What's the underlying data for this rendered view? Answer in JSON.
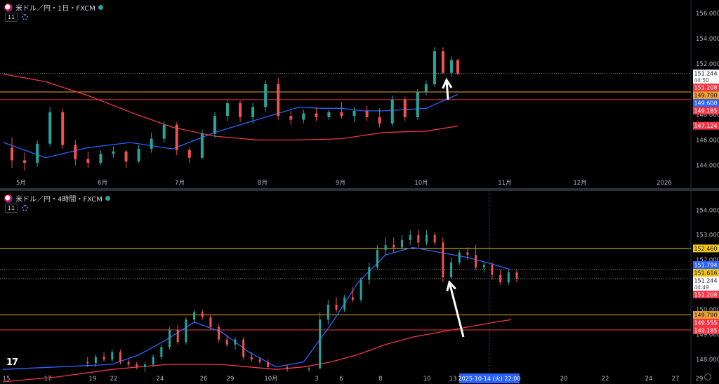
{
  "chart_data": [
    {
      "type": "candlestick",
      "title": "米ドル／円・1日・FXCM",
      "indicator_count": "11",
      "ylim": [
        143.2,
        156.6
      ],
      "y_ticks": [
        144.0,
        146.0,
        148.0,
        150.0,
        152.0,
        154.0,
        156.0
      ],
      "y_tick_labels": [
        "144.000",
        "146.000",
        "148.000",
        "150.000",
        "152.000",
        "154.000",
        "156.000"
      ],
      "x_tick_labels": [
        "5月",
        "6月",
        "7月",
        "8月",
        "9月",
        "10月",
        "11月",
        "12月",
        "2026"
      ],
      "grid": false,
      "hlines": [
        {
          "value": 151.244,
          "color": "#8a8e99",
          "style": "dotted"
        },
        {
          "value": 149.79,
          "color": "#f0a030",
          "style": "solid"
        },
        {
          "value": 149.185,
          "color": "#f23645",
          "style": "solid"
        }
      ],
      "price_labels": [
        {
          "value": 151.244,
          "text": "151.244",
          "sub": "44:50",
          "bg": "#ffffff",
          "fg": "#131722"
        },
        {
          "value": 151.208,
          "text": "151.208",
          "bg": "#f23645",
          "fg": "#ffffff"
        },
        {
          "value": 149.79,
          "text": "149.790",
          "bg": "#f0a030",
          "fg": "#131722"
        },
        {
          "value": 149.6,
          "text": "149.600",
          "bg": "#2962ff",
          "fg": "#ffffff"
        },
        {
          "value": 149.185,
          "text": "149.185",
          "bg": "#f23645",
          "fg": "#ffffff"
        },
        {
          "value": 147.124,
          "text": "147.124",
          "bg": "#f23645",
          "fg": "#ffffff"
        }
      ],
      "series": [
        {
          "color": "#2962ff",
          "x": [
            0,
            20,
            40,
            60,
            80,
            100,
            120,
            140,
            150,
            160,
            170,
            180,
            190,
            200,
            215
          ],
          "y": [
            145.8,
            144.6,
            145.4,
            145.8,
            145.3,
            146.6,
            147.6,
            148.6,
            148.5,
            148.5,
            148.3,
            148.3,
            148.4,
            148.5,
            149.6
          ]
        },
        {
          "color": "#f23645",
          "x": [
            0,
            20,
            40,
            60,
            80,
            100,
            120,
            140,
            160,
            180,
            200,
            215
          ],
          "y": [
            151.2,
            150.6,
            149.5,
            148.2,
            147.0,
            146.3,
            146.0,
            146.0,
            146.1,
            146.6,
            146.7,
            147.1
          ]
        }
      ],
      "candles": [
        {
          "x": 4,
          "o": 145.4,
          "h": 146.2,
          "l": 143.8,
          "c": 144.4
        },
        {
          "x": 10,
          "o": 144.4,
          "h": 145.0,
          "l": 143.6,
          "c": 144.2
        },
        {
          "x": 16,
          "o": 144.2,
          "h": 146.0,
          "l": 143.9,
          "c": 145.7
        },
        {
          "x": 22,
          "o": 145.7,
          "h": 148.6,
          "l": 145.5,
          "c": 148.2
        },
        {
          "x": 28,
          "o": 148.2,
          "h": 148.5,
          "l": 145.3,
          "c": 145.6
        },
        {
          "x": 34,
          "o": 145.6,
          "h": 146.0,
          "l": 144.0,
          "c": 144.5
        },
        {
          "x": 40,
          "o": 144.5,
          "h": 145.1,
          "l": 143.8,
          "c": 144.2
        },
        {
          "x": 46,
          "o": 144.2,
          "h": 145.2,
          "l": 144.0,
          "c": 144.9
        },
        {
          "x": 52,
          "o": 144.9,
          "h": 145.5,
          "l": 144.6,
          "c": 145.1
        },
        {
          "x": 58,
          "o": 145.1,
          "h": 145.2,
          "l": 143.8,
          "c": 144.3
        },
        {
          "x": 64,
          "o": 144.3,
          "h": 145.6,
          "l": 144.2,
          "c": 145.3
        },
        {
          "x": 70,
          "o": 145.3,
          "h": 146.6,
          "l": 145.0,
          "c": 146.1
        },
        {
          "x": 76,
          "o": 146.1,
          "h": 147.5,
          "l": 145.8,
          "c": 147.2
        },
        {
          "x": 82,
          "o": 147.2,
          "h": 147.4,
          "l": 144.8,
          "c": 145.2
        },
        {
          "x": 88,
          "o": 145.2,
          "h": 145.4,
          "l": 144.2,
          "c": 144.6
        },
        {
          "x": 94,
          "o": 144.6,
          "h": 146.8,
          "l": 144.5,
          "c": 146.5
        },
        {
          "x": 100,
          "o": 146.5,
          "h": 148.2,
          "l": 146.2,
          "c": 147.9
        },
        {
          "x": 106,
          "o": 147.9,
          "h": 149.2,
          "l": 147.5,
          "c": 148.9
        },
        {
          "x": 112,
          "o": 148.9,
          "h": 149.1,
          "l": 147.4,
          "c": 147.8
        },
        {
          "x": 118,
          "o": 147.8,
          "h": 148.9,
          "l": 147.3,
          "c": 148.6
        },
        {
          "x": 124,
          "o": 148.6,
          "h": 150.7,
          "l": 148.2,
          "c": 150.4
        },
        {
          "x": 130,
          "o": 150.4,
          "h": 150.9,
          "l": 147.6,
          "c": 147.9
        },
        {
          "x": 136,
          "o": 147.9,
          "h": 148.3,
          "l": 147.2,
          "c": 147.6
        },
        {
          "x": 142,
          "o": 147.6,
          "h": 148.4,
          "l": 147.3,
          "c": 148.1
        },
        {
          "x": 148,
          "o": 148.1,
          "h": 148.6,
          "l": 147.5,
          "c": 147.8
        },
        {
          "x": 154,
          "o": 147.8,
          "h": 148.4,
          "l": 147.6,
          "c": 148.2
        },
        {
          "x": 160,
          "o": 148.2,
          "h": 149.0,
          "l": 147.7,
          "c": 147.9
        },
        {
          "x": 166,
          "o": 147.9,
          "h": 148.6,
          "l": 147.4,
          "c": 148.3
        },
        {
          "x": 172,
          "o": 148.3,
          "h": 148.7,
          "l": 147.5,
          "c": 147.8
        },
        {
          "x": 178,
          "o": 147.8,
          "h": 148.5,
          "l": 147.0,
          "c": 147.3
        },
        {
          "x": 184,
          "o": 147.3,
          "h": 149.5,
          "l": 147.1,
          "c": 149.2
        },
        {
          "x": 190,
          "o": 149.2,
          "h": 149.4,
          "l": 147.5,
          "c": 147.8
        },
        {
          "x": 196,
          "o": 147.8,
          "h": 150.0,
          "l": 147.6,
          "c": 149.8
        },
        {
          "x": 200,
          "o": 149.8,
          "h": 150.7,
          "l": 149.5,
          "c": 150.4
        },
        {
          "x": 204,
          "o": 150.4,
          "h": 153.3,
          "l": 150.2,
          "c": 153.0
        },
        {
          "x": 208,
          "o": 153.0,
          "h": 153.3,
          "l": 151.2,
          "c": 151.3
        },
        {
          "x": 212,
          "o": 151.3,
          "h": 152.6,
          "l": 151.0,
          "c": 152.3
        },
        {
          "x": 215,
          "o": 152.3,
          "h": 152.4,
          "l": 151.1,
          "c": 151.24
        }
      ]
    },
    {
      "type": "candlestick",
      "title": "米ドル／円・4時間・FXCM",
      "indicator_count": "11",
      "ylim": [
        147.55,
        154.6
      ],
      "y_ticks": [
        148.0,
        149.0,
        150.0,
        151.0,
        152.0,
        153.0,
        154.0
      ],
      "y_tick_labels": [
        "148.000",
        "149.000",
        "150.000",
        "151.000",
        "152.000",
        "153.000",
        "154.000"
      ],
      "x_tick_labels": [
        "15",
        "17",
        "19",
        "22",
        "24",
        "26",
        "29",
        "10月",
        "3",
        "6",
        "8",
        "10",
        "13",
        "15",
        "20",
        "22",
        "24",
        "27",
        "29"
      ],
      "crosshair_label": "2025-10-14 (火)  22:00",
      "grid": false,
      "hlines": [
        {
          "value": 152.46,
          "color": "#f0c419",
          "style": "solid"
        },
        {
          "value": 151.616,
          "color": "#8a8e99",
          "style": "dotted"
        },
        {
          "value": 151.244,
          "color": "#8a8e99",
          "style": "dotted"
        },
        {
          "value": 149.79,
          "color": "#f0a030",
          "style": "solid"
        },
        {
          "value": 149.185,
          "color": "#f23645",
          "style": "solid"
        }
      ],
      "price_labels": [
        {
          "value": 152.46,
          "text": "152.460",
          "bg": "#f0c419",
          "fg": "#131722"
        },
        {
          "value": 151.794,
          "text": "151.794",
          "bg": "#2962ff",
          "fg": "#ffffff"
        },
        {
          "value": 151.616,
          "text": "151.616",
          "bg": "#f0c419",
          "fg": "#131722"
        },
        {
          "value": 151.244,
          "text": "151.244",
          "sub": "44:49",
          "bg": "#ffffff",
          "fg": "#131722"
        },
        {
          "value": 151.208,
          "text": "151.208",
          "bg": "#f23645",
          "fg": "#ffffff"
        },
        {
          "value": 149.79,
          "text": "149.790",
          "bg": "#f0a030",
          "fg": "#131722"
        },
        {
          "value": 149.555,
          "text": "149.555",
          "bg": "#f23645",
          "fg": "#ffffff"
        },
        {
          "value": 149.185,
          "text": "149.185",
          "bg": "#f23645",
          "fg": "#ffffff"
        }
      ],
      "series": [
        {
          "color": "#2962ff",
          "x": [
            0,
            20,
            40,
            50,
            60,
            70,
            80,
            90,
            100,
            110,
            120,
            130,
            140,
            150,
            160,
            170,
            180,
            186
          ],
          "y": [
            147.6,
            147.7,
            147.8,
            148.2,
            148.8,
            149.5,
            149.1,
            148.3,
            147.7,
            147.9,
            149.4,
            151.1,
            152.2,
            152.5,
            152.3,
            152.1,
            151.8,
            151.6
          ]
        },
        {
          "color": "#f23645",
          "x": [
            0,
            20,
            40,
            60,
            80,
            90,
            100,
            110,
            120,
            130,
            140,
            150,
            160,
            170,
            180,
            186
          ],
          "y": [
            147.1,
            147.3,
            147.6,
            147.8,
            147.8,
            147.7,
            147.6,
            147.7,
            147.9,
            148.2,
            148.6,
            148.9,
            149.1,
            149.3,
            149.5,
            149.6
          ]
        }
      ],
      "candles": [
        {
          "x": 31,
          "o": 147.9,
          "h": 148.1,
          "l": 147.7,
          "c": 147.85
        },
        {
          "x": 34,
          "o": 147.85,
          "h": 148.2,
          "l": 147.7,
          "c": 148.1
        },
        {
          "x": 37,
          "o": 148.1,
          "h": 148.3,
          "l": 147.9,
          "c": 148.0
        },
        {
          "x": 40,
          "o": 148.0,
          "h": 148.4,
          "l": 147.9,
          "c": 148.3
        },
        {
          "x": 43,
          "o": 148.3,
          "h": 148.4,
          "l": 147.8,
          "c": 147.9
        },
        {
          "x": 46,
          "o": 147.9,
          "h": 148.0,
          "l": 147.7,
          "c": 147.8
        },
        {
          "x": 49,
          "o": 147.8,
          "h": 147.9,
          "l": 147.6,
          "c": 147.7
        },
        {
          "x": 52,
          "o": 147.7,
          "h": 147.9,
          "l": 147.5,
          "c": 147.8
        },
        {
          "x": 55,
          "o": 147.8,
          "h": 148.2,
          "l": 147.7,
          "c": 148.1
        },
        {
          "x": 58,
          "o": 148.1,
          "h": 148.6,
          "l": 148.0,
          "c": 148.5
        },
        {
          "x": 61,
          "o": 148.5,
          "h": 149.3,
          "l": 148.4,
          "c": 149.2
        },
        {
          "x": 64,
          "o": 149.2,
          "h": 149.4,
          "l": 148.6,
          "c": 148.7
        },
        {
          "x": 67,
          "o": 148.7,
          "h": 149.7,
          "l": 148.6,
          "c": 149.6
        },
        {
          "x": 70,
          "o": 149.6,
          "h": 150.0,
          "l": 149.5,
          "c": 149.9
        },
        {
          "x": 73,
          "o": 149.9,
          "h": 150.0,
          "l": 149.6,
          "c": 149.7
        },
        {
          "x": 76,
          "o": 149.7,
          "h": 149.8,
          "l": 149.2,
          "c": 149.3
        },
        {
          "x": 79,
          "o": 149.3,
          "h": 149.4,
          "l": 148.7,
          "c": 148.8
        },
        {
          "x": 82,
          "o": 148.8,
          "h": 149.0,
          "l": 148.5,
          "c": 148.6
        },
        {
          "x": 85,
          "o": 148.6,
          "h": 148.9,
          "l": 148.4,
          "c": 148.8
        },
        {
          "x": 88,
          "o": 148.8,
          "h": 148.9,
          "l": 148.0,
          "c": 148.1
        },
        {
          "x": 91,
          "o": 148.1,
          "h": 148.3,
          "l": 147.9,
          "c": 148.0
        },
        {
          "x": 94,
          "o": 148.0,
          "h": 148.1,
          "l": 147.8,
          "c": 147.9
        },
        {
          "x": 97,
          "o": 147.9,
          "h": 148.0,
          "l": 147.6,
          "c": 147.7
        },
        {
          "x": 104,
          "o": 147.7,
          "h": 147.8,
          "l": 147.5,
          "c": 147.6
        },
        {
          "x": 112,
          "o": 147.6,
          "h": 147.7,
          "l": 147.5,
          "c": 147.65
        },
        {
          "x": 116,
          "o": 147.65,
          "h": 149.9,
          "l": 147.6,
          "c": 149.6
        },
        {
          "x": 119,
          "o": 149.6,
          "h": 150.4,
          "l": 149.4,
          "c": 150.2
        },
        {
          "x": 122,
          "o": 150.2,
          "h": 150.5,
          "l": 149.9,
          "c": 150.0
        },
        {
          "x": 125,
          "o": 150.0,
          "h": 150.6,
          "l": 149.9,
          "c": 150.5
        },
        {
          "x": 128,
          "o": 150.5,
          "h": 150.9,
          "l": 150.3,
          "c": 150.4
        },
        {
          "x": 131,
          "o": 150.4,
          "h": 151.3,
          "l": 150.3,
          "c": 151.2
        },
        {
          "x": 134,
          "o": 151.2,
          "h": 151.9,
          "l": 151.0,
          "c": 151.7
        },
        {
          "x": 137,
          "o": 151.7,
          "h": 152.6,
          "l": 151.6,
          "c": 152.4
        },
        {
          "x": 140,
          "o": 152.4,
          "h": 152.9,
          "l": 152.2,
          "c": 152.6
        },
        {
          "x": 143,
          "o": 152.6,
          "h": 152.9,
          "l": 152.3,
          "c": 152.5
        },
        {
          "x": 146,
          "o": 152.5,
          "h": 153.0,
          "l": 152.4,
          "c": 152.8
        },
        {
          "x": 149,
          "o": 152.8,
          "h": 153.2,
          "l": 152.6,
          "c": 153.0
        },
        {
          "x": 152,
          "o": 153.0,
          "h": 153.2,
          "l": 152.5,
          "c": 152.7
        },
        {
          "x": 155,
          "o": 152.7,
          "h": 153.2,
          "l": 152.6,
          "c": 153.0
        },
        {
          "x": 158,
          "o": 153.0,
          "h": 153.1,
          "l": 152.6,
          "c": 152.7
        },
        {
          "x": 161,
          "o": 152.7,
          "h": 152.9,
          "l": 151.1,
          "c": 151.3
        },
        {
          "x": 164,
          "o": 151.3,
          "h": 152.1,
          "l": 151.2,
          "c": 151.9
        },
        {
          "x": 167,
          "o": 151.9,
          "h": 152.4,
          "l": 151.8,
          "c": 152.3
        },
        {
          "x": 170,
          "o": 152.3,
          "h": 152.5,
          "l": 152.0,
          "c": 152.2
        },
        {
          "x": 173,
          "o": 152.2,
          "h": 152.6,
          "l": 151.6,
          "c": 151.7
        },
        {
          "x": 176,
          "o": 151.7,
          "h": 151.9,
          "l": 151.5,
          "c": 151.8
        },
        {
          "x": 179,
          "o": 151.8,
          "h": 151.9,
          "l": 151.2,
          "c": 151.4
        },
        {
          "x": 182,
          "o": 151.4,
          "h": 151.6,
          "l": 151.0,
          "c": 151.1
        },
        {
          "x": 185,
          "o": 151.1,
          "h": 151.6,
          "l": 151.0,
          "c": 151.5
        },
        {
          "x": 188,
          "o": 151.5,
          "h": 151.6,
          "l": 151.1,
          "c": 151.244
        }
      ]
    }
  ]
}
